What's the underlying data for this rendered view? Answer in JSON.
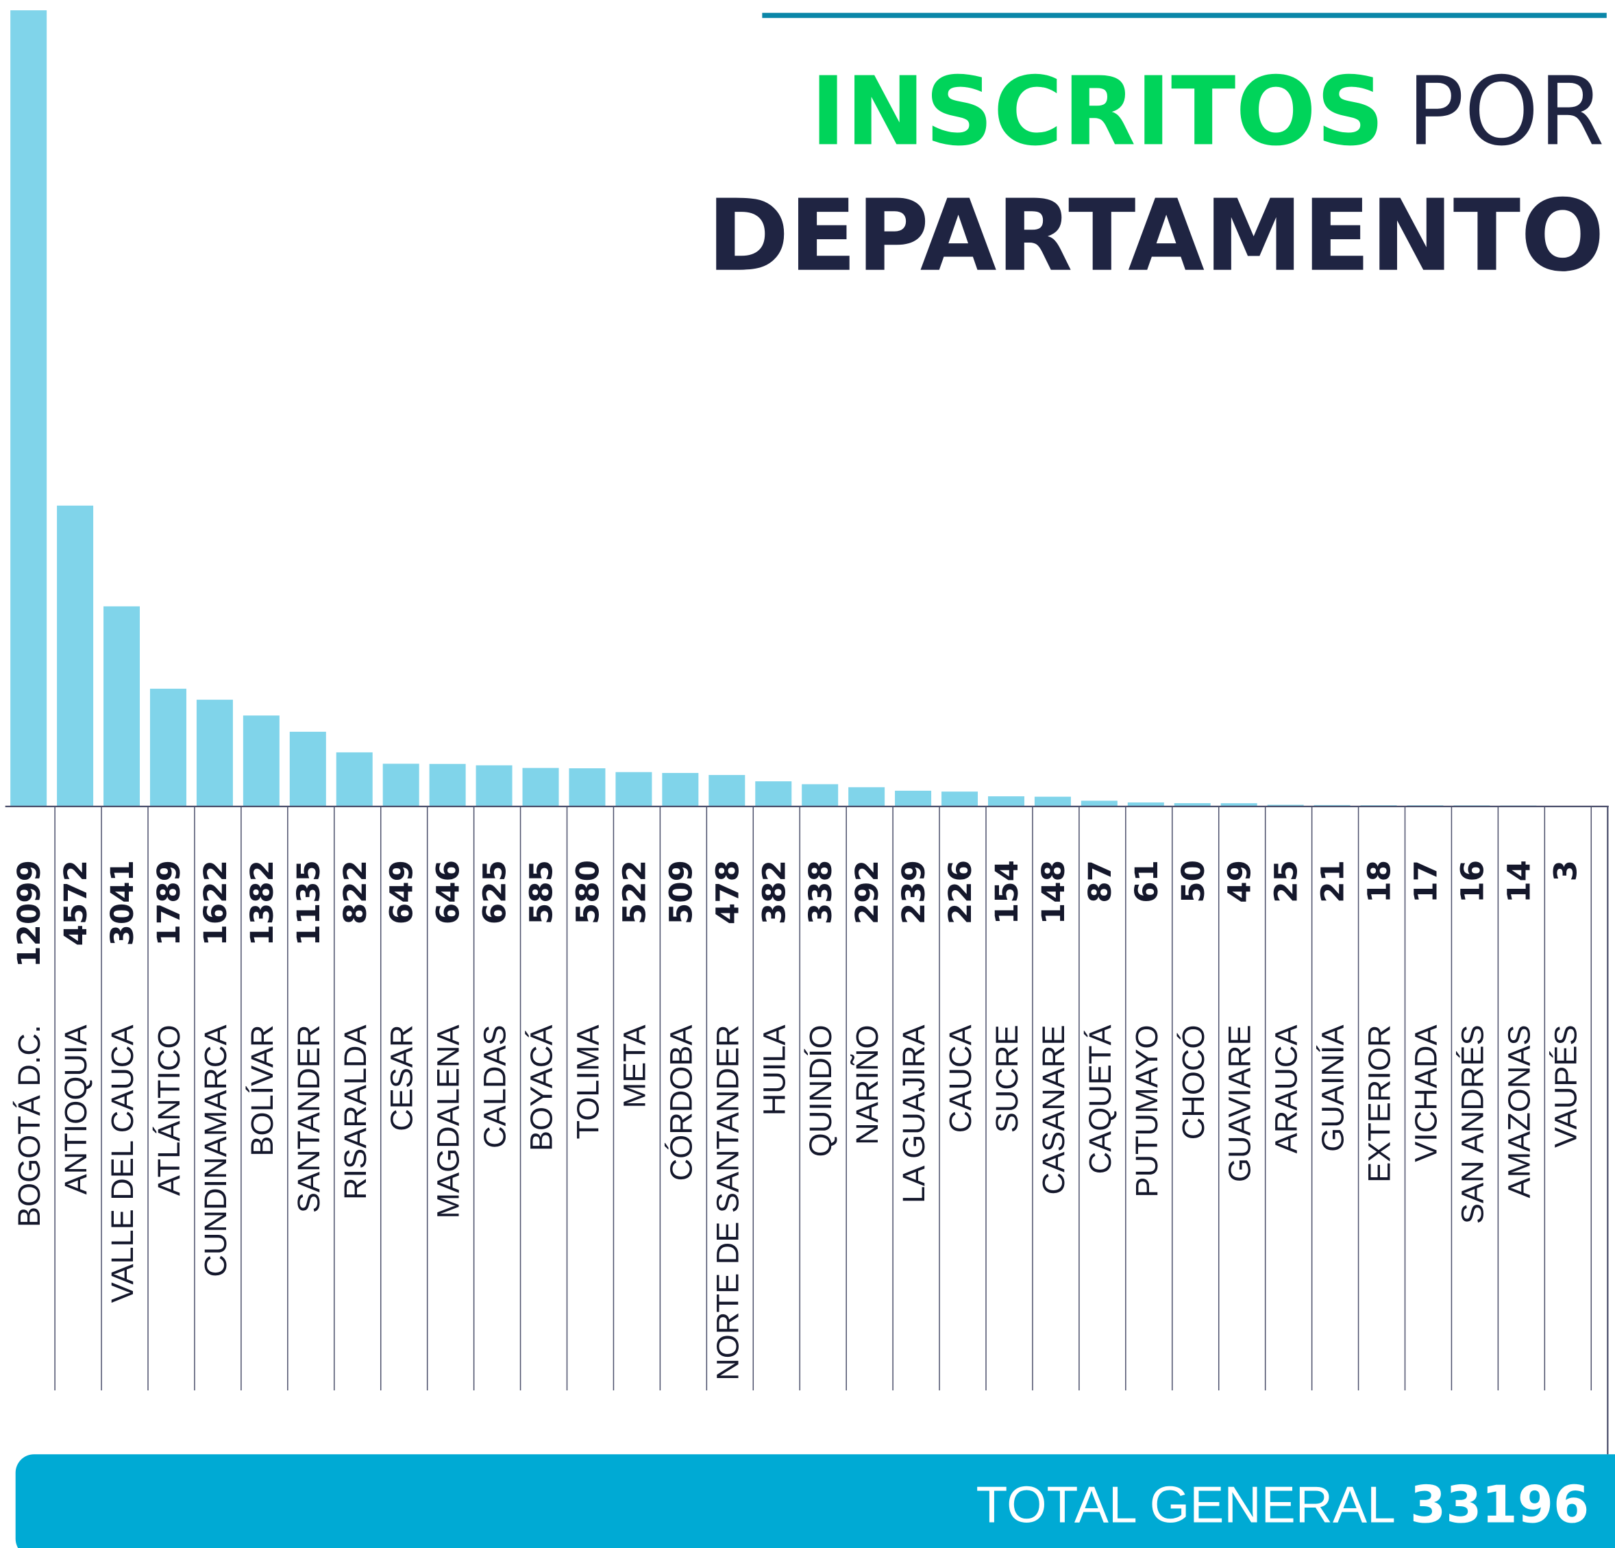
{
  "chart_data": {
    "type": "bar",
    "title_highlight": "INSCRITOS",
    "title_rest": "POR",
    "title_line2": "DEPARTAMENTO",
    "categories": [
      "BOGOTÁ D.C.",
      "ANTIOQUIA",
      "VALLE DEL CAUCA",
      "ATLÁNTICO",
      "CUNDINAMARCA",
      "BOLÍVAR",
      "SANTANDER",
      "RISARALDA",
      "CESAR",
      "MAGDALENA",
      "CALDAS",
      "BOYACÁ",
      "TOLIMA",
      "META",
      "CÓRDOBA",
      "NORTE DE SANTANDER",
      "HUILA",
      "QUINDÍO",
      "NARIÑO",
      "LA GUAJIRA",
      "CAUCA",
      "SUCRE",
      "CASANARE",
      "CAQUETÁ",
      "PUTUMAYO",
      "CHOCÓ",
      "GUAVIARE",
      "ARAUCA",
      "GUAINÍA",
      "EXTERIOR",
      "VICHADA",
      "SAN ANDRÉS",
      "AMAZONAS",
      "VAUPÉS"
    ],
    "values": [
      12099,
      4572,
      3041,
      1789,
      1622,
      1382,
      1135,
      822,
      649,
      646,
      625,
      585,
      580,
      522,
      509,
      478,
      382,
      338,
      292,
      239,
      226,
      154,
      148,
      87,
      61,
      50,
      49,
      25,
      21,
      18,
      17,
      16,
      14,
      3
    ],
    "color": "#80d4ea",
    "total_label": "TOTAL GENERAL",
    "total": 33196
  }
}
